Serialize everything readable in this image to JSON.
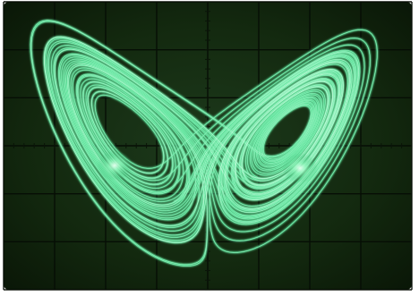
{
  "photo": {
    "subject": "oscilloscope-screen",
    "trace_color": "#54e89a",
    "screen_color": "#0b200f",
    "grid_color": "#050a05",
    "bezel_color": "#ffffff",
    "grid": {
      "columns": 8,
      "rows": 6,
      "minor_divisions": 5
    }
  }
}
